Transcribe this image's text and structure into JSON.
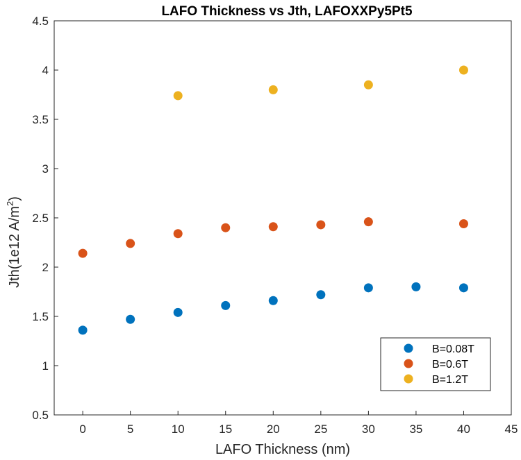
{
  "chart_data": {
    "type": "scatter",
    "title": "LAFO Thickness vs Jth, LAFOXXPy5Pt5",
    "xlabel": "LAFO Thickness (nm)",
    "ylabel": "Jth(1e12 A/m²)",
    "ylabel_base": "Jth(1e12 A/m",
    "ylabel_sup": "2",
    "ylabel_end": ")",
    "xlim": [
      -3,
      45
    ],
    "ylim": [
      0.5,
      4.5
    ],
    "xticks": [
      "0",
      "5",
      "10",
      "15",
      "20",
      "25",
      "30",
      "35",
      "40",
      "45"
    ],
    "yticks": [
      "0.5",
      "1",
      "1.5",
      "2",
      "2.5",
      "3",
      "3.5",
      "4",
      "4.5"
    ],
    "grid": false,
    "legend_position": "lower-right",
    "series": [
      {
        "name": "B=0.08T",
        "color": "#0072BD",
        "x": [
          0,
          5,
          10,
          15,
          20,
          25,
          30,
          35,
          40
        ],
        "y": [
          1.36,
          1.47,
          1.54,
          1.61,
          1.66,
          1.72,
          1.79,
          1.8,
          1.79
        ]
      },
      {
        "name": "B=0.6T",
        "color": "#D95319",
        "x": [
          0,
          5,
          10,
          15,
          20,
          25,
          30,
          40
        ],
        "y": [
          2.14,
          2.24,
          2.34,
          2.4,
          2.41,
          2.43,
          2.46,
          2.44
        ]
      },
      {
        "name": "B=1.2T",
        "color": "#EDB120",
        "x": [
          10,
          20,
          30,
          40
        ],
        "y": [
          3.74,
          3.8,
          3.85,
          4.0
        ]
      }
    ]
  }
}
